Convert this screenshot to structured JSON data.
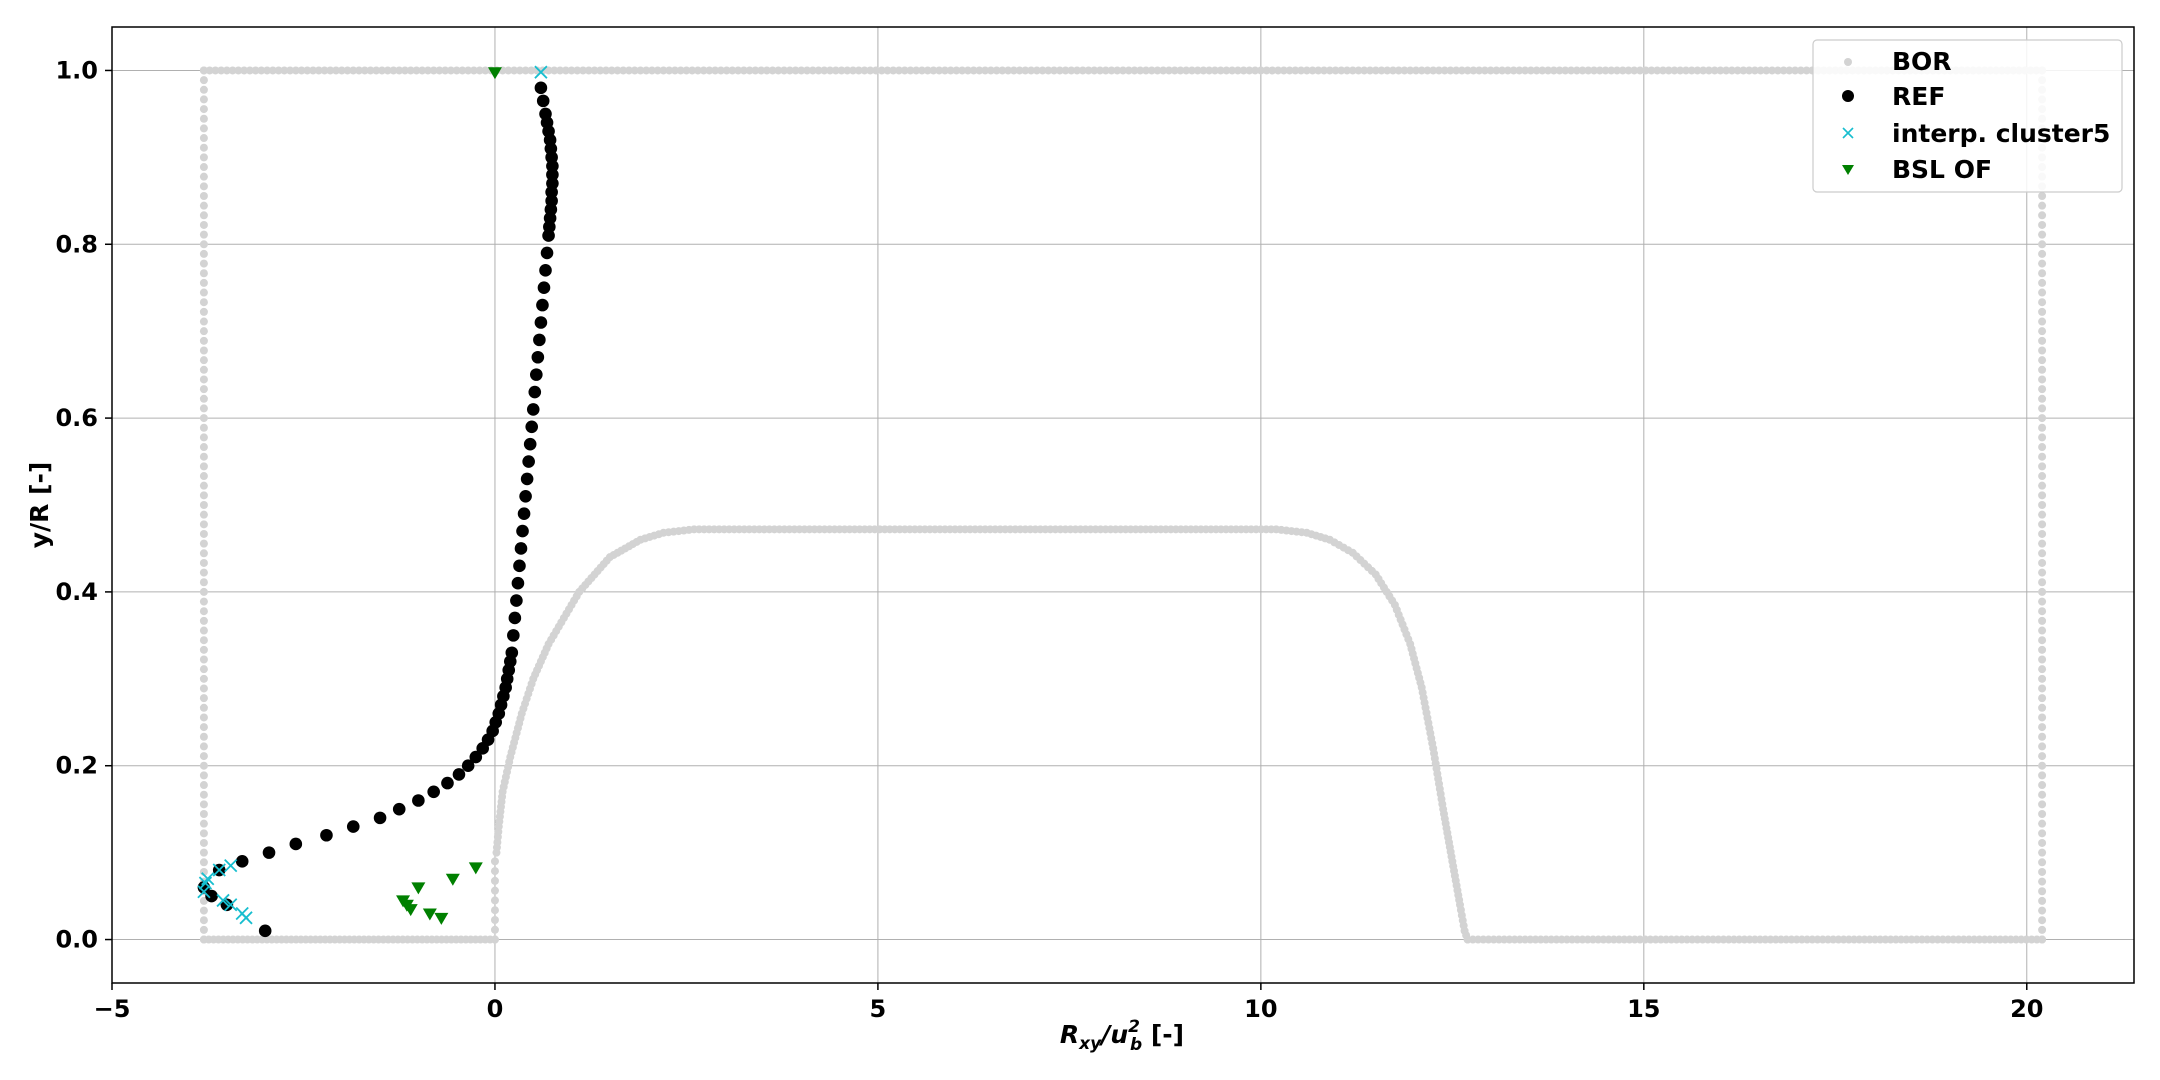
{
  "chart_data": {
    "type": "scatter",
    "xlabel_main": "R",
    "xlabel_sub": "xy",
    "xlabel_mid": "/u",
    "xlabel_sup": "2",
    "xlabel_sub2": "b",
    "xlabel_unit": " [-]",
    "ylabel": "y/R [-]",
    "xlim": [
      -5,
      21.4
    ],
    "ylim": [
      -0.05,
      1.05
    ],
    "xticks": [
      -5,
      0,
      5,
      10,
      15,
      20
    ],
    "xtick_labels": [
      "−5",
      "0",
      "5",
      "10",
      "15",
      "20"
    ],
    "yticks": [
      0.0,
      0.2,
      0.4,
      0.6,
      0.8,
      1.0
    ],
    "ytick_labels": [
      "0.0",
      "0.2",
      "0.4",
      "0.6",
      "0.8",
      "1.0"
    ],
    "grid": true,
    "legend_position": "top-right",
    "colors": {
      "BOR": "#d3d3d3",
      "REF": "#000000",
      "interp": "#17becf",
      "BSL": "#008000"
    },
    "series": [
      {
        "name": "BOR",
        "marker": "circle-small",
        "segments": [
          {
            "kind": "vertical",
            "x": -3.8,
            "y_from": 0.0,
            "y_to": 1.0,
            "n": 90
          },
          {
            "kind": "horizontal",
            "y": 1.0,
            "x_from": -3.8,
            "x_to": 20.2,
            "n": 320
          },
          {
            "kind": "vertical",
            "x": 20.2,
            "y_from": 0.0,
            "y_to": 1.0,
            "n": 90
          },
          {
            "kind": "horizontal",
            "y": 0.0,
            "x_from": 12.7,
            "x_to": 20.2,
            "n": 110
          },
          {
            "kind": "horizontal",
            "y": 0.0,
            "x_from": -3.8,
            "x_to": 0.0,
            "n": 60
          },
          {
            "kind": "vertical",
            "x": 0.0,
            "y_from": 0.0,
            "y_to": 0.09,
            "n": 8
          }
        ],
        "hump": [
          [
            0.02,
            0.1
          ],
          [
            0.05,
            0.13
          ],
          [
            0.1,
            0.17
          ],
          [
            0.2,
            0.21
          ],
          [
            0.35,
            0.26
          ],
          [
            0.5,
            0.3
          ],
          [
            0.7,
            0.34
          ],
          [
            0.9,
            0.37
          ],
          [
            1.1,
            0.4
          ],
          [
            1.3,
            0.42
          ],
          [
            1.5,
            0.44
          ],
          [
            1.7,
            0.45
          ],
          [
            1.9,
            0.46
          ],
          [
            2.2,
            0.468
          ],
          [
            2.6,
            0.472
          ],
          [
            10.2,
            0.472
          ],
          [
            10.6,
            0.468
          ],
          [
            10.9,
            0.46
          ],
          [
            11.2,
            0.445
          ],
          [
            11.5,
            0.42
          ],
          [
            11.75,
            0.385
          ],
          [
            11.95,
            0.34
          ],
          [
            12.1,
            0.29
          ],
          [
            12.25,
            0.22
          ],
          [
            12.38,
            0.15
          ],
          [
            12.5,
            0.09
          ],
          [
            12.6,
            0.04
          ],
          [
            12.66,
            0.01
          ],
          [
            12.7,
            0.0
          ]
        ]
      },
      {
        "name": "REF",
        "marker": "circle",
        "x": [
          -3.0,
          -3.5,
          -3.7,
          -3.8,
          -3.6,
          -3.3,
          -2.95,
          -2.6,
          -2.2,
          -1.85,
          -1.5,
          -1.25,
          -1.0,
          -0.8,
          -0.62,
          -0.47,
          -0.35,
          -0.25,
          -0.16,
          -0.09,
          -0.03,
          0.01,
          0.05,
          0.08,
          0.11,
          0.14,
          0.16,
          0.18,
          0.2,
          0.22,
          0.24,
          0.26,
          0.28,
          0.3,
          0.32,
          0.34,
          0.36,
          0.38,
          0.4,
          0.42,
          0.44,
          0.46,
          0.48,
          0.5,
          0.52,
          0.54,
          0.56,
          0.58,
          0.6,
          0.62,
          0.64,
          0.66,
          0.68,
          0.7,
          0.71,
          0.72,
          0.73,
          0.74,
          0.74,
          0.75,
          0.75,
          0.75,
          0.74,
          0.73,
          0.72,
          0.7,
          0.68,
          0.66,
          0.63,
          0.6
        ],
        "y": [
          0.01,
          0.04,
          0.05,
          0.06,
          0.08,
          0.09,
          0.1,
          0.11,
          0.12,
          0.13,
          0.14,
          0.15,
          0.16,
          0.17,
          0.18,
          0.19,
          0.2,
          0.21,
          0.22,
          0.23,
          0.24,
          0.25,
          0.26,
          0.27,
          0.28,
          0.29,
          0.3,
          0.31,
          0.32,
          0.33,
          0.35,
          0.37,
          0.39,
          0.41,
          0.43,
          0.45,
          0.47,
          0.49,
          0.51,
          0.53,
          0.55,
          0.57,
          0.59,
          0.61,
          0.63,
          0.65,
          0.67,
          0.69,
          0.71,
          0.73,
          0.75,
          0.77,
          0.79,
          0.81,
          0.82,
          0.83,
          0.84,
          0.85,
          0.86,
          0.87,
          0.88,
          0.89,
          0.9,
          0.91,
          0.92,
          0.93,
          0.94,
          0.95,
          0.965,
          0.98
        ]
      },
      {
        "name": "interp. cluster5",
        "marker": "x",
        "x": [
          -3.25,
          -3.3,
          -3.45,
          -3.55,
          -3.8,
          -3.78,
          -3.75,
          -3.6,
          -3.45,
          0.6
        ],
        "y": [
          0.025,
          0.03,
          0.04,
          0.045,
          0.055,
          0.065,
          0.07,
          0.08,
          0.085,
          0.998
        ]
      },
      {
        "name": "BSL OF",
        "marker": "triangle-down",
        "x": [
          -1.2,
          -1.15,
          -1.1,
          -1.0,
          -0.85,
          -0.7,
          -0.55,
          -0.25,
          0.0
        ],
        "y": [
          0.045,
          0.04,
          0.035,
          0.06,
          0.03,
          0.025,
          0.07,
          0.083,
          0.998
        ]
      }
    ],
    "legend": [
      "BOR",
      "REF",
      "interp. cluster5",
      "BSL OF"
    ]
  }
}
